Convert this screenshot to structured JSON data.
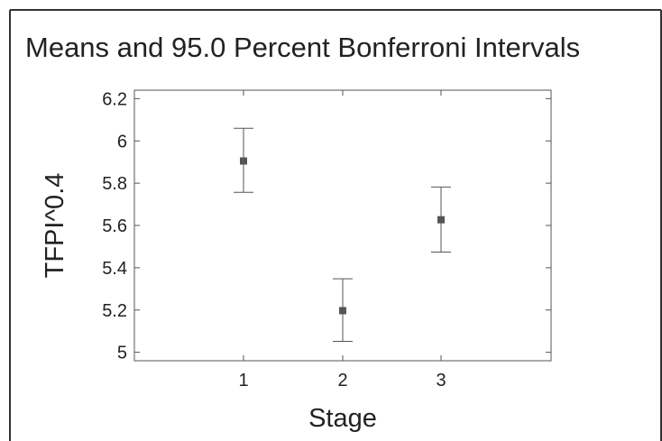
{
  "chart_data": {
    "type": "scatter",
    "title": "Means and 95.0 Percent Bonferroni Intervals",
    "xlabel": "Stage",
    "ylabel": "TFPI^0.4",
    "categories": [
      "1",
      "2",
      "3"
    ],
    "means": [
      5.905,
      5.197,
      5.627
    ],
    "lower": [
      5.757,
      5.052,
      5.474
    ],
    "upper": [
      6.06,
      5.348,
      5.782
    ],
    "ylim": [
      4.96,
      6.24
    ],
    "yticks": [
      "5",
      "5.2",
      "5.4",
      "5.6",
      "5.8",
      "6",
      "6.2"
    ],
    "grid": false,
    "colors": {
      "marker": "#555555",
      "errorbar": "#555555",
      "axis": "#555555",
      "text": "#222222"
    }
  }
}
